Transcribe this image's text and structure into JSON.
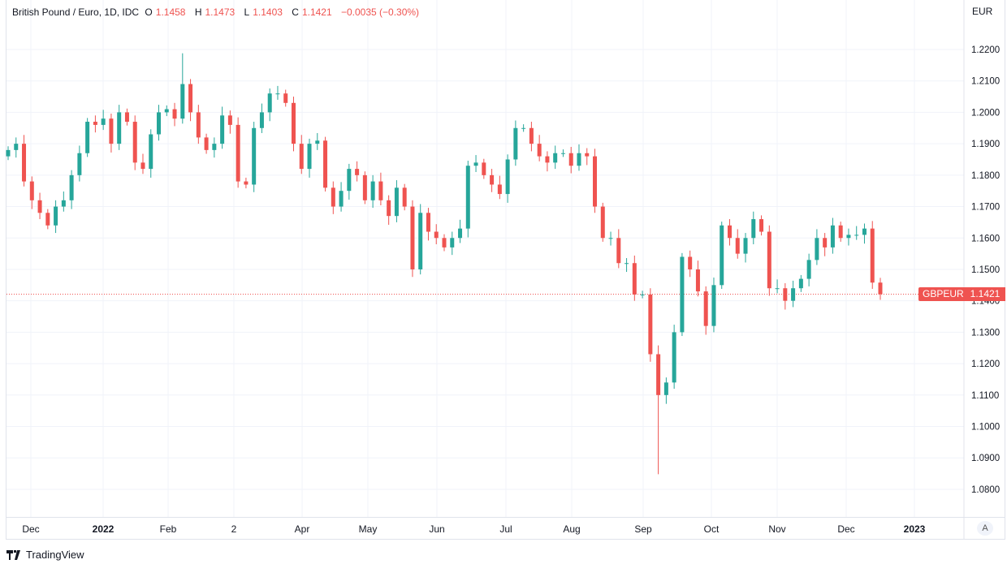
{
  "legend": {
    "title": "British Pound / Euro, 1D, IDC",
    "o_label": "O",
    "o": "1.1458",
    "h_label": "H",
    "h": "1.1473",
    "l_label": "L",
    "l": "1.1403",
    "c_label": "C",
    "c": "1.1421",
    "change": "−0.0035 (−0.30%)"
  },
  "currency": "EUR",
  "symbol_tag": "GBPEUR",
  "last_price": "1.1421",
  "auto_button": "A",
  "brand": "TradingView",
  "colors": {
    "up": "#26a69a",
    "down": "#ef5350",
    "grid": "#f0f3fa"
  },
  "chart_data": {
    "type": "candlestick",
    "title": "British Pound / Euro, 1D, IDC",
    "ylim": [
      1.075,
      1.2275
    ],
    "y_ticks": [
      "1.2200",
      "1.2100",
      "1.2000",
      "1.1900",
      "1.1800",
      "1.1700",
      "1.1600",
      "1.1500",
      "1.1400",
      "1.1300",
      "1.1200",
      "1.1100",
      "1.1000",
      "1.0900",
      "1.0800"
    ],
    "x_ticks": [
      "Dec",
      "2022",
      "Feb",
      "2",
      "Apr",
      "May",
      "Jun",
      "Jul",
      "Aug",
      "Sep",
      "Oct",
      "Nov",
      "Dec",
      "2023"
    ],
    "grid": true,
    "period_high": 1.2188,
    "period_low": 1.0848,
    "last_candle": {
      "open": 1.1458,
      "high": 1.1473,
      "low": 1.1403,
      "close": 1.1421
    },
    "closes": [
      1.188,
      1.19,
      1.178,
      1.172,
      1.168,
      1.164,
      1.17,
      1.172,
      1.18,
      1.187,
      1.197,
      1.196,
      1.198,
      1.19,
      1.2,
      1.197,
      1.184,
      1.182,
      1.193,
      1.2,
      1.201,
      1.198,
      1.209,
      1.2,
      1.192,
      1.188,
      1.19,
      1.199,
      1.196,
      1.178,
      1.177,
      1.195,
      1.2,
      1.206,
      1.206,
      1.203,
      1.19,
      1.182,
      1.19,
      1.191,
      1.176,
      1.17,
      1.175,
      1.182,
      1.18,
      1.172,
      1.178,
      1.172,
      1.167,
      1.176,
      1.17,
      1.15,
      1.168,
      1.162,
      1.16,
      1.157,
      1.16,
      1.163,
      1.183,
      1.184,
      1.18,
      1.177,
      1.174,
      1.185,
      1.195,
      1.195,
      1.19,
      1.186,
      1.184,
      1.187,
      1.187,
      1.183,
      1.187,
      1.186,
      1.17,
      1.16,
      1.16,
      1.152,
      1.152,
      1.142,
      1.142,
      1.123,
      1.11,
      1.114,
      1.13,
      1.154,
      1.15,
      1.143,
      1.132,
      1.145,
      1.164,
      1.16,
      1.155,
      1.16,
      1.166,
      1.162,
      1.144,
      1.144,
      1.14,
      1.144,
      1.147,
      1.153,
      1.16,
      1.157,
      1.164,
      1.16,
      1.161,
      1.161,
      1.163,
      1.1458,
      1.1421
    ]
  }
}
